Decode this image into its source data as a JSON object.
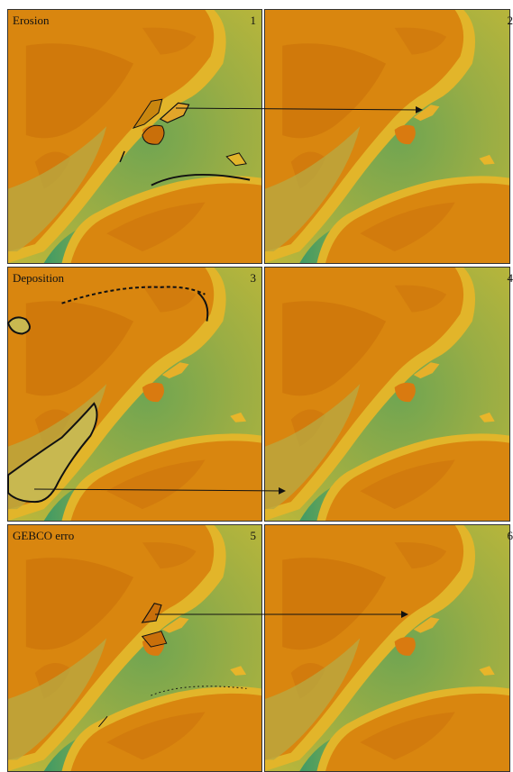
{
  "figure": {
    "panels": [
      {
        "title": "Erosion",
        "number": "1"
      },
      {
        "title": "",
        "number": "2"
      },
      {
        "title": "Deposition",
        "number": "3"
      },
      {
        "title": "",
        "number": "4"
      },
      {
        "title": "GEBCO erro",
        "number": "5"
      },
      {
        "title": "",
        "number": "6"
      }
    ]
  },
  "colors": {
    "land_orange": "#d9860f",
    "land_dark": "#c96f0a",
    "shallow_yellow": "#e2b52a",
    "water_olive": "#b8b43a",
    "water_green": "#6fa552",
    "water_deep": "#3f9a66",
    "outline": "#111111",
    "highlight_fill": "#c8b850"
  }
}
